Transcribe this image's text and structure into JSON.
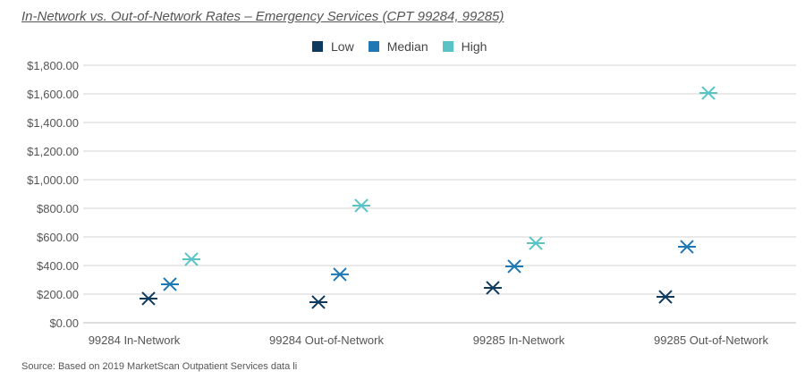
{
  "chart_data": {
    "type": "scatter",
    "title": "In-Network vs. Out-of-Network Rates – Emergency Services (CPT 99284, 99285)",
    "categories": [
      "99284 In-Network",
      "99284 Out-of-Network",
      "99285 In-Network",
      "99285 Out-of-Network"
    ],
    "series": [
      {
        "name": "Low",
        "color": "#0e3a5e",
        "values": [
          169,
          144,
          244,
          181
        ]
      },
      {
        "name": "Median",
        "color": "#1f77b4",
        "values": [
          269,
          338,
          394,
          531
        ]
      },
      {
        "name": "High",
        "color": "#5ac3c6",
        "values": [
          444,
          819,
          556,
          1606
        ]
      }
    ],
    "ylim": [
      0,
      1800
    ],
    "yticks": [
      "$0.00",
      "$200.00",
      "$400.00",
      "$600.00",
      "$800.00",
      "$1,000.00",
      "$1,200.00",
      "$1,400.00",
      "$1,600.00",
      "$1,800.00"
    ],
    "grid": true,
    "legend": "top-center",
    "marker": "asterisk"
  },
  "source": "Source: Based on 2019 MarketScan Outpatient Services data li"
}
